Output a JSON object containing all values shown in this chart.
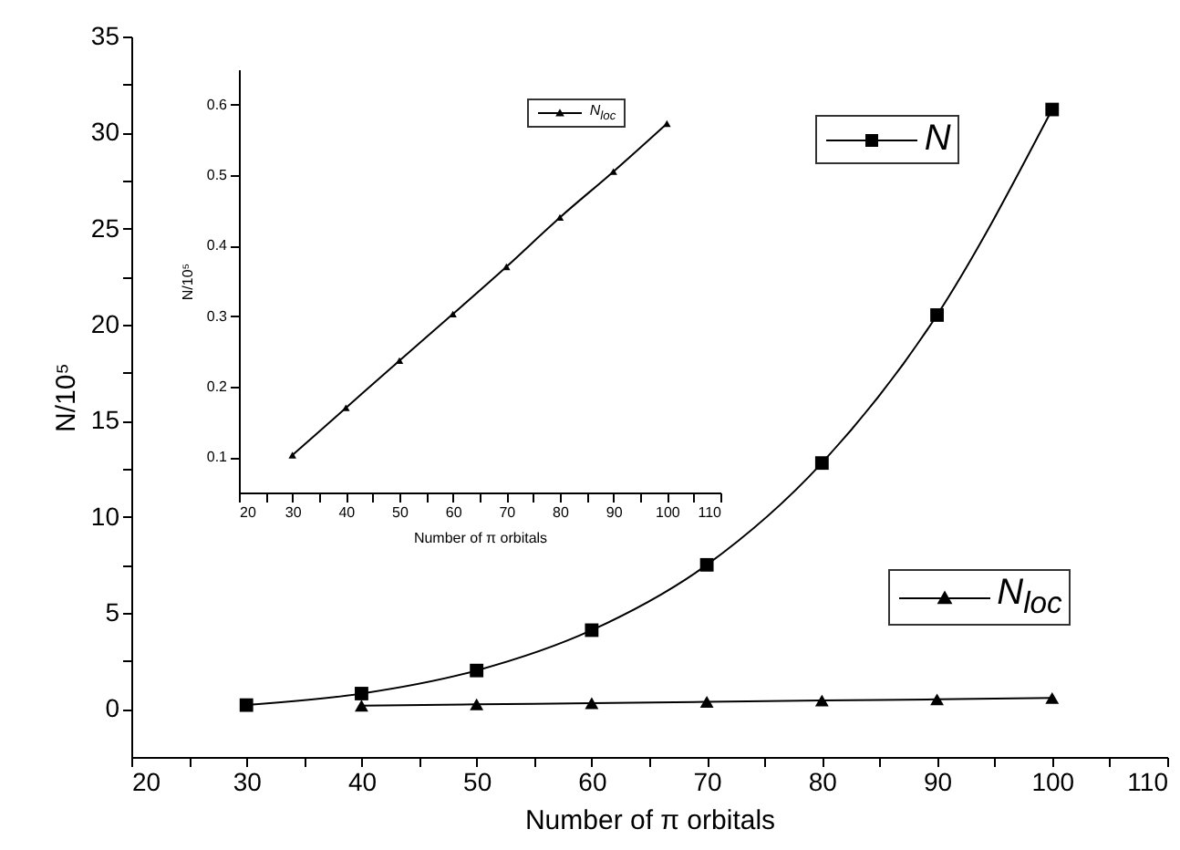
{
  "chart_data": [
    {
      "type": "line",
      "xlabel": "Number of π orbitals",
      "ylabel": "N/10⁵",
      "x": [
        30,
        40,
        50,
        60,
        70,
        80,
        90,
        100
      ],
      "xlim": [
        20,
        110
      ],
      "ylim": [
        -2.5,
        35
      ],
      "xticks": [
        20,
        {
          "value": 25,
          "label": null
        },
        30,
        {
          "value": 35,
          "label": null
        },
        40,
        {
          "value": 45,
          "label": null
        },
        50,
        {
          "value": 55,
          "label": null
        },
        60,
        {
          "value": 65,
          "label": null
        },
        70,
        {
          "value": 75,
          "label": null
        },
        80,
        {
          "value": 85,
          "label": null
        },
        90,
        {
          "value": 95,
          "label": null
        },
        100,
        {
          "value": 105,
          "label": null
        },
        110
      ],
      "yticks": [
        0,
        {
          "value": 2.5,
          "label": null
        },
        5,
        {
          "value": 7.5,
          "label": null
        },
        10,
        {
          "value": 12.5,
          "label": null
        },
        15,
        {
          "value": 17.5,
          "label": null
        },
        20,
        {
          "value": 22.5,
          "label": null
        },
        25,
        {
          "value": 27.5,
          "label": null
        },
        30,
        {
          "value": 32.5,
          "label": null
        },
        35
      ],
      "legend": "right",
      "line_style": "solid",
      "series": [
        {
          "name": "N",
          "color": "#000000",
          "marker": "square",
          "values": [
            0.2,
            0.8,
            2.0,
            4.1,
            7.5,
            12.8,
            20.5,
            31.2
          ]
        },
        {
          "name": "N$_{loc}$",
          "color": "#000000",
          "marker": "triangle",
          "values": [
            null,
            0.17,
            0.24,
            0.3,
            0.37,
            0.44,
            0.5,
            0.57
          ]
        }
      ]
    },
    {
      "type": "line",
      "xlabel": "Number of π orbitals",
      "ylabel": "N/10⁵",
      "x": [
        30,
        40,
        50,
        60,
        70,
        80,
        90,
        100
      ],
      "xlim": [
        20,
        110
      ],
      "ylim": [
        0.05,
        0.65
      ],
      "xticks": [
        20,
        {
          "value": 25,
          "label": null
        },
        30,
        {
          "value": 35,
          "label": null
        },
        40,
        {
          "value": 45,
          "label": null
        },
        50,
        {
          "value": 55,
          "label": null
        },
        60,
        {
          "value": 65,
          "label": null
        },
        70,
        {
          "value": 75,
          "label": null
        },
        80,
        {
          "value": 85,
          "label": null
        },
        90,
        {
          "value": 95,
          "label": null
        },
        100,
        {
          "value": 105,
          "label": null
        },
        110
      ],
      "yticks": [
        0.1,
        0.2,
        0.3,
        0.4,
        0.5,
        0.6
      ],
      "legend": "top",
      "line_style": "solid",
      "series": [
        {
          "name": "N$_{loc}$",
          "color": "#000000",
          "marker": "triangle",
          "values": [
            0.103,
            0.17,
            0.237,
            0.303,
            0.37,
            0.44,
            0.505,
            0.573
          ]
        }
      ]
    }
  ]
}
